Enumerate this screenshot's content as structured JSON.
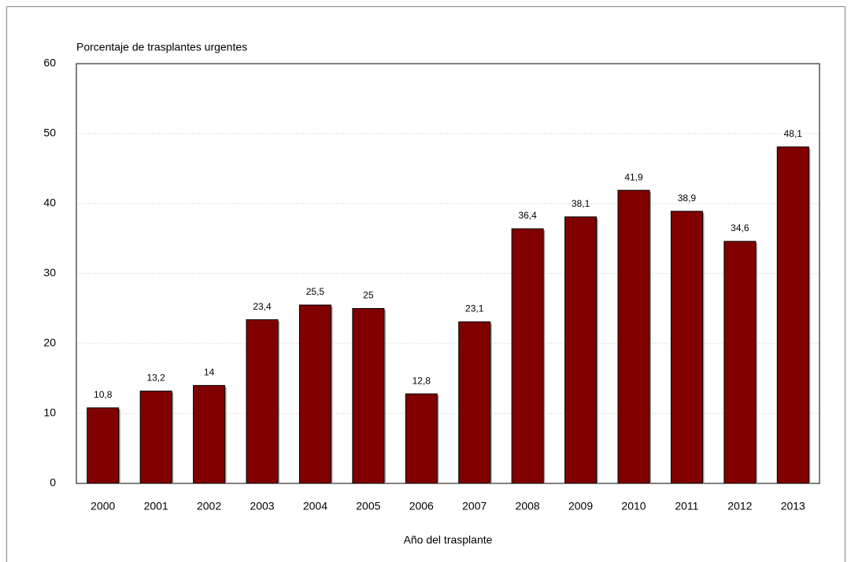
{
  "chart_data": {
    "type": "bar",
    "y_label": "Porcentaje de trasplantes urgentes",
    "x_label": "Año del trasplante",
    "categories": [
      "2000",
      "2001",
      "2002",
      "2003",
      "2004",
      "2005",
      "2006",
      "2007",
      "2008",
      "2009",
      "2010",
      "2011",
      "2012",
      "2013"
    ],
    "values": [
      10.8,
      13.2,
      14,
      23.4,
      25.5,
      25,
      12.8,
      23.1,
      36.4,
      38.1,
      41.9,
      38.9,
      34.6,
      48.1
    ],
    "value_labels": [
      "10,8",
      "13,2",
      "14",
      "23,4",
      "25,5",
      "25",
      "12,8",
      "23,1",
      "36,4",
      "38,1",
      "41,9",
      "38,9",
      "34,6",
      "48,1"
    ],
    "color": "#800000",
    "ylim": [
      0,
      60
    ],
    "yticks": [
      0,
      10,
      20,
      30,
      40,
      50,
      60
    ],
    "grid": true
  }
}
